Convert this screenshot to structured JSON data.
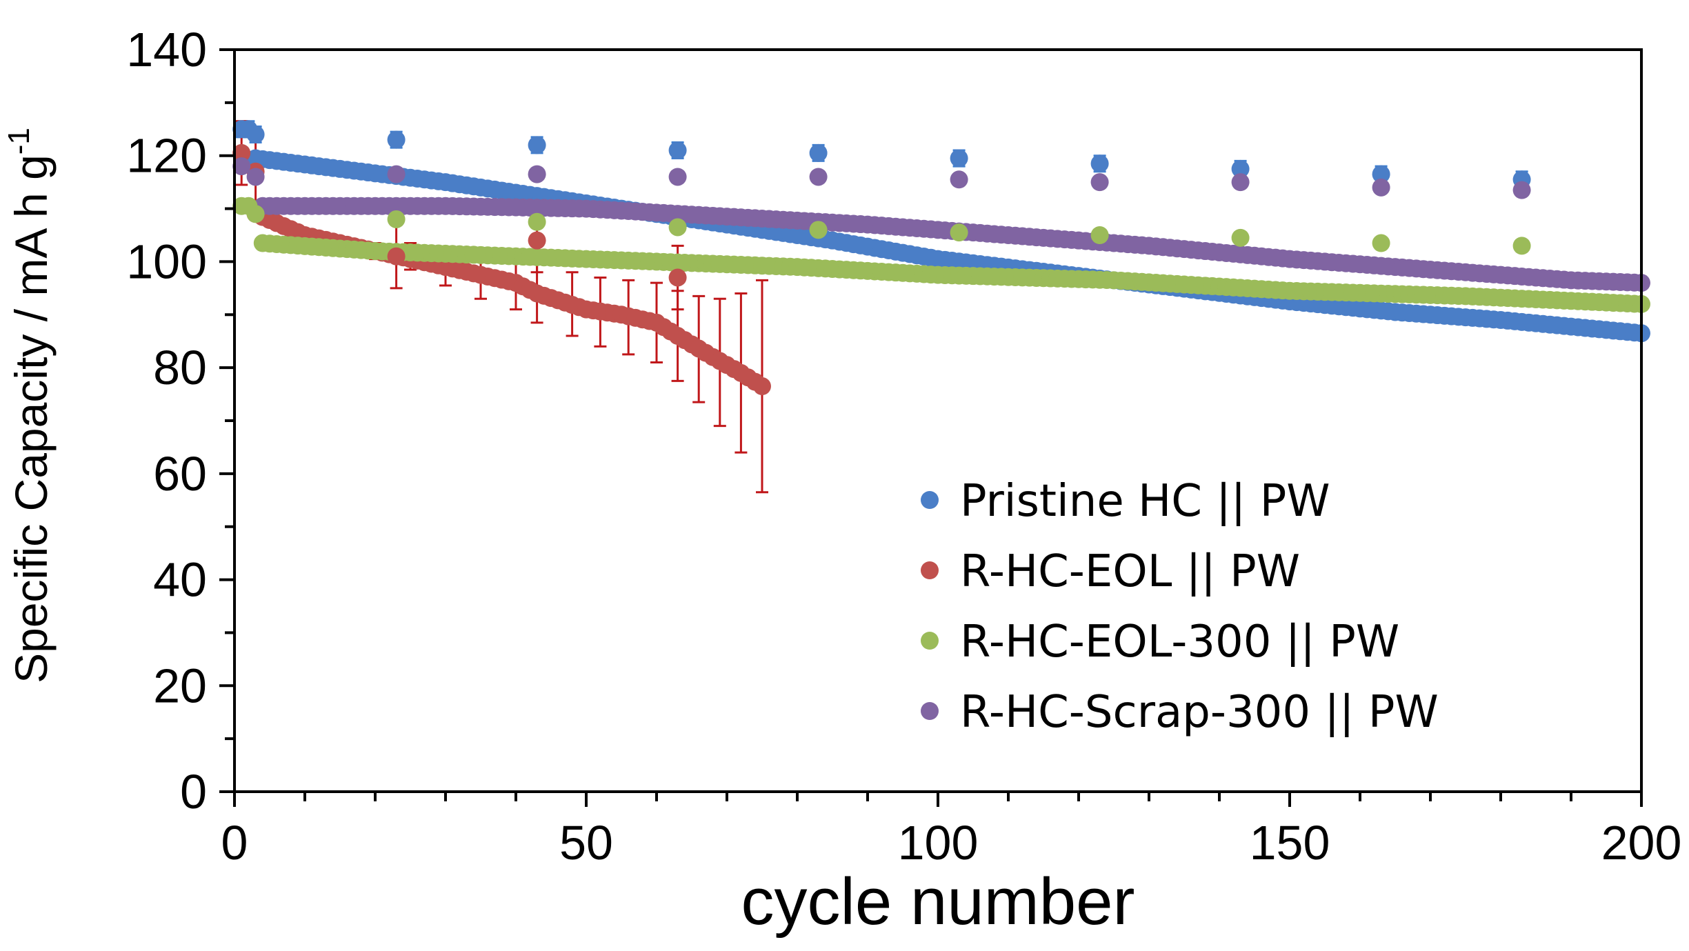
{
  "chart_data": {
    "type": "scatter",
    "title": "",
    "xlabel": "cycle number",
    "ylabel": "Specific Capacity / mA h g",
    "ylabel_superscript": "-1",
    "xlim": [
      0,
      200
    ],
    "ylim": [
      0,
      140
    ],
    "x_ticks": [
      "0",
      "50",
      "100",
      "150",
      "200"
    ],
    "y_ticks": [
      "0",
      "20",
      "40",
      "60",
      "80",
      "100",
      "120",
      "140"
    ],
    "grid": false,
    "legend_position": "bottom-right",
    "series": [
      {
        "name": "Pristine HC  || PW",
        "color": "#4a7ec7",
        "error_color": "#3f7fd0",
        "trend": [
          [
            3,
            119.5
          ],
          [
            30,
            115
          ],
          [
            60,
            109
          ],
          [
            85,
            104
          ],
          [
            100,
            100.5
          ],
          [
            125,
            96.5
          ],
          [
            150,
            92.5
          ],
          [
            165,
            90.5
          ],
          [
            180,
            89
          ],
          [
            200,
            86.5
          ]
        ],
        "outliers": [
          [
            1,
            125
          ],
          [
            2,
            125
          ],
          [
            3,
            124
          ],
          [
            23,
            123
          ],
          [
            43,
            122
          ],
          [
            63,
            121
          ],
          [
            83,
            120.5
          ],
          [
            103,
            119.5
          ],
          [
            123,
            118.5
          ],
          [
            143,
            117.5
          ],
          [
            163,
            116.5
          ],
          [
            183,
            115.5
          ]
        ],
        "trend_error": 1.2,
        "outlier_error": 1.5
      },
      {
        "name": "R-HC-EOL || PW",
        "color": "#c0504d",
        "error_color": "#c0171a",
        "trend": [
          [
            3,
            109
          ],
          [
            10,
            105
          ],
          [
            20,
            102
          ],
          [
            30,
            99
          ],
          [
            40,
            96
          ],
          [
            43,
            94
          ],
          [
            50,
            91
          ],
          [
            55,
            90
          ],
          [
            60,
            88.5
          ],
          [
            63,
            86
          ],
          [
            68,
            82
          ],
          [
            72,
            79
          ],
          [
            75,
            76.5
          ]
        ],
        "trend_error_points": [
          [
            20,
            102,
            1.5
          ],
          [
            25,
            101,
            2.5
          ],
          [
            30,
            99,
            3.5
          ],
          [
            35,
            97.5,
            4.5
          ],
          [
            40,
            96,
            5
          ],
          [
            43,
            94,
            5.5
          ],
          [
            48,
            92,
            6
          ],
          [
            52,
            90.5,
            6.5
          ],
          [
            56,
            89.5,
            7
          ],
          [
            60,
            88.5,
            7.5
          ],
          [
            63,
            86,
            8.5
          ],
          [
            66,
            83.5,
            10
          ],
          [
            69,
            81,
            12
          ],
          [
            72,
            79,
            15
          ],
          [
            75,
            76.5,
            20
          ]
        ],
        "outliers": [
          [
            1,
            120.5
          ],
          [
            3,
            117
          ],
          [
            23,
            101
          ],
          [
            43,
            104
          ],
          [
            63,
            97
          ]
        ],
        "outlier_error": 6
      },
      {
        "name": "R-HC-EOL-300 || PW",
        "color": "#9bbb59",
        "error_color": "#7ea03a",
        "trend": [
          [
            4,
            103.5
          ],
          [
            20,
            102
          ],
          [
            50,
            100.5
          ],
          [
            80,
            99
          ],
          [
            100,
            97.5
          ],
          [
            125,
            96.5
          ],
          [
            150,
            94.5
          ],
          [
            175,
            93.5
          ],
          [
            200,
            92
          ]
        ],
        "outliers": [
          [
            1,
            110.5
          ],
          [
            2,
            110.5
          ],
          [
            3,
            109
          ],
          [
            23,
            108
          ],
          [
            43,
            107.5
          ],
          [
            63,
            106.5
          ],
          [
            83,
            106
          ],
          [
            103,
            105.5
          ],
          [
            123,
            105
          ],
          [
            143,
            104.5
          ],
          [
            163,
            103.5
          ],
          [
            183,
            103
          ]
        ],
        "trend_error": 0.5,
        "outlier_error": 0.5
      },
      {
        "name": "R-HC-Scrap-300 || PW",
        "color": "#8064a2",
        "error_color": "#333333",
        "trend": [
          [
            4,
            110.5
          ],
          [
            30,
            110.5
          ],
          [
            50,
            110
          ],
          [
            70,
            108.5
          ],
          [
            90,
            107
          ],
          [
            110,
            105
          ],
          [
            130,
            103
          ],
          [
            150,
            100.5
          ],
          [
            170,
            98.5
          ],
          [
            190,
            96.5
          ],
          [
            200,
            96
          ]
        ],
        "outliers": [
          [
            1,
            118
          ],
          [
            3,
            116
          ],
          [
            23,
            116.5
          ],
          [
            43,
            116.5
          ],
          [
            63,
            116
          ],
          [
            83,
            116
          ],
          [
            103,
            115.5
          ],
          [
            123,
            115
          ],
          [
            143,
            115
          ],
          [
            163,
            114
          ],
          [
            183,
            113.5
          ]
        ],
        "trend_error": 0.8,
        "outlier_error": 0.5
      }
    ]
  }
}
